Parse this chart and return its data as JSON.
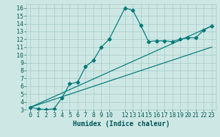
{
  "xlabel": "Humidex (Indice chaleur)",
  "background_color": "#cde8e4",
  "line_color": "#007878",
  "xlim": [
    -0.5,
    23.5
  ],
  "ylim": [
    3,
    16.5
  ],
  "xticks": [
    0,
    1,
    2,
    3,
    4,
    5,
    6,
    7,
    8,
    9,
    10,
    12,
    13,
    14,
    15,
    16,
    17,
    18,
    19,
    20,
    21,
    22,
    23
  ],
  "yticks": [
    3,
    4,
    5,
    6,
    7,
    8,
    9,
    10,
    11,
    12,
    13,
    14,
    15,
    16
  ],
  "series1_x": [
    0,
    1,
    2,
    3,
    4,
    5,
    6,
    7,
    8,
    9,
    10,
    12,
    13,
    14,
    15,
    16,
    17,
    18,
    19,
    20,
    21,
    22,
    23
  ],
  "series1_y": [
    3.3,
    3.1,
    3.0,
    3.1,
    4.5,
    6.3,
    6.5,
    8.5,
    9.3,
    11.0,
    12.0,
    16.0,
    15.7,
    13.8,
    11.7,
    11.8,
    11.8,
    11.7,
    12.0,
    12.2,
    12.2,
    13.2,
    13.7
  ],
  "series2_x": [
    0,
    23
  ],
  "series2_y": [
    3.3,
    11.0
  ],
  "series3_x": [
    0,
    23
  ],
  "series3_y": [
    3.3,
    13.7
  ],
  "grid_color": "#aacccc",
  "marker": "D",
  "marker_size": 2.5,
  "font_color": "#005555",
  "tick_fontsize": 6,
  "xlabel_fontsize": 7
}
